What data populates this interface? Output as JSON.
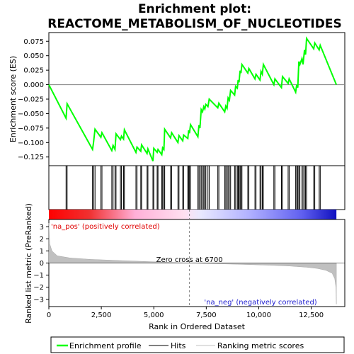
{
  "chart_data": {
    "type": "line",
    "title_lines": [
      "Enrichment plot:",
      "REACTOME_METABOLISM_OF_NUCLEOTIDES"
    ],
    "es_panel": {
      "ylabel": "Enrichment score (ES)",
      "ylim": [
        -0.14,
        0.09
      ],
      "yticks": [
        -0.125,
        -0.1,
        -0.075,
        -0.05,
        -0.025,
        0.0,
        0.025,
        0.05,
        0.075
      ],
      "ytick_labels": [
        "−0.125",
        "−0.100",
        "−0.075",
        "−0.050",
        "−0.025",
        "0.000",
        "0.025",
        "0.050",
        "0.075"
      ],
      "line_color": "#00ff00",
      "curve": [
        [
          0,
          0.0
        ],
        [
          820,
          -0.058
        ],
        [
          870,
          -0.033
        ],
        [
          2080,
          -0.112
        ],
        [
          2130,
          -0.1
        ],
        [
          2200,
          -0.077
        ],
        [
          2480,
          -0.091
        ],
        [
          2530,
          -0.083
        ],
        [
          3000,
          -0.114
        ],
        [
          3060,
          -0.105
        ],
        [
          3150,
          -0.112
        ],
        [
          3200,
          -0.085
        ],
        [
          3410,
          -0.095
        ],
        [
          3460,
          -0.089
        ],
        [
          3560,
          -0.094
        ],
        [
          3600,
          -0.078
        ],
        [
          4150,
          -0.117
        ],
        [
          4200,
          -0.108
        ],
        [
          4380,
          -0.115
        ],
        [
          4420,
          -0.104
        ],
        [
          4680,
          -0.119
        ],
        [
          4720,
          -0.111
        ],
        [
          4960,
          -0.132
        ],
        [
          5000,
          -0.11
        ],
        [
          5160,
          -0.117
        ],
        [
          5200,
          -0.112
        ],
        [
          5380,
          -0.121
        ],
        [
          5420,
          -0.109
        ],
        [
          5480,
          -0.112
        ],
        [
          5520,
          -0.077
        ],
        [
          5800,
          -0.092
        ],
        [
          5850,
          -0.083
        ],
        [
          6150,
          -0.1
        ],
        [
          6200,
          -0.088
        ],
        [
          6380,
          -0.097
        ],
        [
          6420,
          -0.087
        ],
        [
          6620,
          -0.093
        ],
        [
          6660,
          -0.079
        ],
        [
          6700,
          -0.084
        ],
        [
          6750,
          -0.069
        ],
        [
          7100,
          -0.09
        ],
        [
          7150,
          -0.07
        ],
        [
          7200,
          -0.075
        ],
        [
          7260,
          -0.043
        ],
        [
          7320,
          -0.047
        ],
        [
          7380,
          -0.038
        ],
        [
          7430,
          -0.042
        ],
        [
          7480,
          -0.034
        ],
        [
          7580,
          -0.038
        ],
        [
          7640,
          -0.025
        ],
        [
          8050,
          -0.04
        ],
        [
          8100,
          -0.032
        ],
        [
          8380,
          -0.047
        ],
        [
          8430,
          -0.037
        ],
        [
          8490,
          -0.041
        ],
        [
          8540,
          -0.023
        ],
        [
          8600,
          -0.027
        ],
        [
          8660,
          -0.01
        ],
        [
          8850,
          -0.018
        ],
        [
          8900,
          -0.003
        ],
        [
          8980,
          -0.006
        ],
        [
          9020,
          0.008
        ],
        [
          9060,
          0.004
        ],
        [
          9110,
          0.024
        ],
        [
          9150,
          0.02
        ],
        [
          9200,
          0.035
        ],
        [
          9480,
          0.02
        ],
        [
          9530,
          0.028
        ],
        [
          9820,
          0.01
        ],
        [
          9870,
          0.018
        ],
        [
          10060,
          0.008
        ],
        [
          10110,
          0.023
        ],
        [
          10170,
          0.018
        ],
        [
          10220,
          0.035
        ],
        [
          10720,
          0.0
        ],
        [
          10770,
          0.01
        ],
        [
          11080,
          -0.005
        ],
        [
          11130,
          0.014
        ],
        [
          11400,
          0.002
        ],
        [
          11450,
          0.01
        ],
        [
          11760,
          -0.013
        ],
        [
          11810,
          0.0
        ],
        [
          11860,
          -0.005
        ],
        [
          11910,
          0.04
        ],
        [
          11960,
          0.035
        ],
        [
          12060,
          0.045
        ],
        [
          12110,
          0.035
        ],
        [
          12180,
          0.06
        ],
        [
          12230,
          0.052
        ],
        [
          12280,
          0.08
        ],
        [
          12620,
          0.062
        ],
        [
          12670,
          0.072
        ],
        [
          12880,
          0.06
        ],
        [
          12930,
          0.068
        ],
        [
          13700,
          0.0
        ]
      ]
    },
    "hits": [
      820,
      870,
      2080,
      2130,
      2200,
      2480,
      2530,
      3000,
      3060,
      3150,
      3200,
      3410,
      3460,
      3560,
      3600,
      4150,
      4200,
      4380,
      4420,
      4680,
      4720,
      4960,
      5000,
      5160,
      5200,
      5380,
      5420,
      5480,
      5520,
      5800,
      5850,
      6150,
      6200,
      6380,
      6420,
      6620,
      6660,
      6700,
      6750,
      7100,
      7150,
      7200,
      7260,
      7320,
      7380,
      7430,
      7480,
      7580,
      7640,
      8050,
      8100,
      8380,
      8430,
      8490,
      8540,
      8600,
      8660,
      8850,
      8900,
      8980,
      9020,
      9060,
      9110,
      9150,
      9200,
      9480,
      9530,
      9820,
      9870,
      10060,
      10110,
      10170,
      10220,
      10720,
      10770,
      11080,
      11130,
      11400,
      11450,
      11760,
      11810,
      11860,
      11910,
      11960,
      12060,
      12110,
      12180,
      12230,
      12280,
      12620,
      12670,
      12880,
      12930
    ],
    "metric_panel": {
      "ylabel": "Ranked list metric (PreRanked)",
      "ylim": [
        -3.6,
        3.6
      ],
      "yticks": [
        -3,
        -2,
        -1,
        0,
        1,
        2,
        3
      ],
      "ytick_labels": [
        "−3",
        "−2",
        "−1",
        "0",
        "1",
        "2",
        "3"
      ],
      "curve": [
        [
          0,
          3.3
        ],
        [
          40,
          1.6
        ],
        [
          150,
          1.0
        ],
        [
          400,
          0.6
        ],
        [
          1000,
          0.42
        ],
        [
          2000,
          0.3
        ],
        [
          3500,
          0.2
        ],
        [
          5000,
          0.1
        ],
        [
          6000,
          0.04
        ],
        [
          6700,
          0.0
        ],
        [
          7500,
          -0.04
        ],
        [
          9000,
          -0.1
        ],
        [
          10500,
          -0.18
        ],
        [
          11500,
          -0.25
        ],
        [
          12300,
          -0.35
        ],
        [
          12800,
          -0.45
        ],
        [
          13200,
          -0.6
        ],
        [
          13500,
          -0.85
        ],
        [
          13620,
          -1.3
        ],
        [
          13680,
          -2.0
        ],
        [
          13700,
          -3.4
        ]
      ],
      "zero_cross_label": "Zero cross at 6700",
      "zero_cross": 6700,
      "pos_label": "'na_pos' (positively correlated)",
      "neg_label": "'na_neg' (negatively correlated)"
    },
    "xlabel": "Rank in Ordered Dataset",
    "xlim": [
      0,
      14100
    ],
    "xticks": [
      0,
      2500,
      5000,
      7500,
      10000,
      12500
    ],
    "xtick_labels": [
      "0",
      "2,500",
      "5,000",
      "7,500",
      "10,000",
      "12,500"
    ],
    "n_genes": 13700,
    "legend": {
      "placement": "bottom",
      "items": [
        {
          "label": "Enrichment profile",
          "color": "#00ff00"
        },
        {
          "label": "Hits",
          "color": "#000000"
        },
        {
          "label": "Ranking metric scores",
          "color": "#c0c0c0"
        }
      ]
    }
  }
}
